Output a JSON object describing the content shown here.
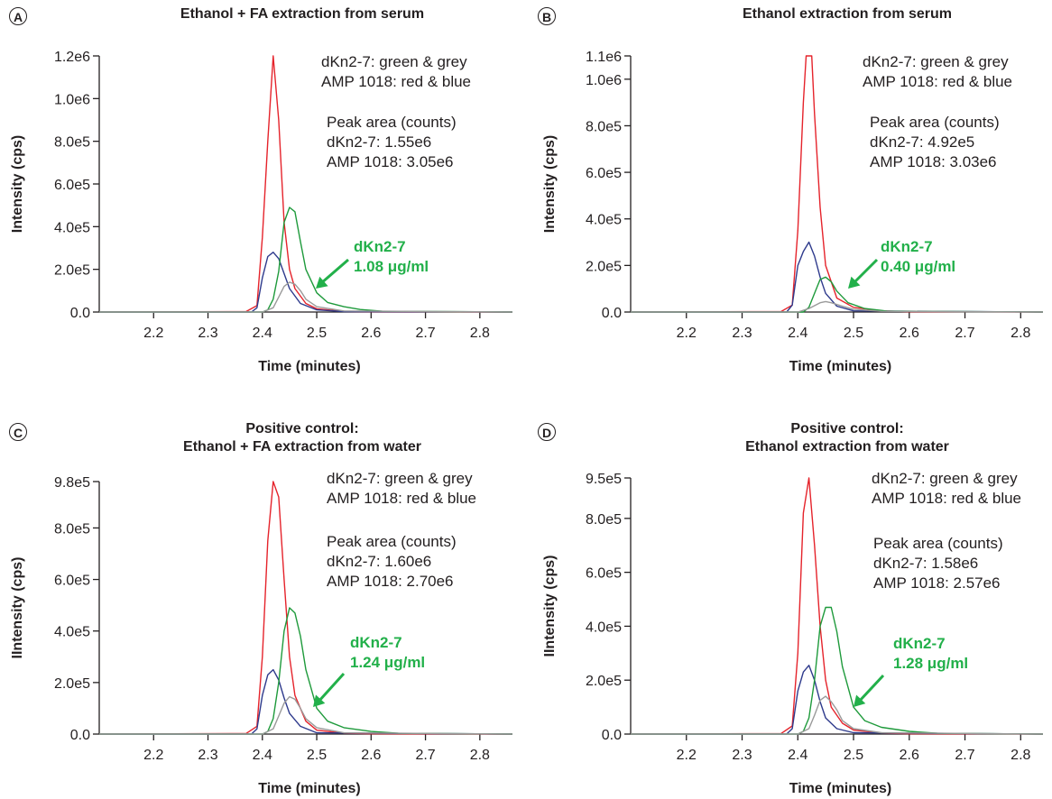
{
  "chart_data": [
    {
      "panel": "A",
      "type": "line",
      "title": "Ethanol + FA extraction from serum",
      "xlabel": "Time (minutes)",
      "ylabel": "Intensity (cps)",
      "xlim": [
        2.1,
        2.86
      ],
      "ylim": [
        0,
        1200000
      ],
      "yticks": [
        "0.0",
        "2.0e5",
        "4.0e5",
        "6.0e5",
        "8.0e5",
        "1.0e6",
        "1.2e6"
      ],
      "ytick_values": [
        0,
        200000,
        400000,
        600000,
        800000,
        1000000,
        1200000
      ],
      "xticks": [
        "2.2",
        "2.3",
        "2.4",
        "2.5",
        "2.6",
        "2.7",
        "2.8"
      ],
      "xtick_values": [
        2.2,
        2.3,
        2.4,
        2.5,
        2.6,
        2.7,
        2.8
      ],
      "legend_lines": [
        "dKn2-7: green & grey",
        "AMP 1018: red & blue"
      ],
      "peak_area_lines": [
        "Peak area (counts)",
        "dKn2-7: 1.55e6",
        "AMP 1018: 3.05e6"
      ],
      "annotation": [
        "dKn2-7",
        "1.08 μg/ml"
      ],
      "series": [
        {
          "color": "#e5232b",
          "x": [
            2.1,
            2.37,
            2.39,
            2.4,
            2.41,
            2.42,
            2.43,
            2.44,
            2.45,
            2.46,
            2.48,
            2.5,
            2.55,
            2.6,
            2.86
          ],
          "y": [
            0,
            2000,
            30000,
            350000,
            800000,
            1200000,
            900000,
            420000,
            200000,
            110000,
            40000,
            15000,
            3000,
            1000,
            0
          ]
        },
        {
          "color": "#2e3a8c",
          "x": [
            2.1,
            2.38,
            2.39,
            2.4,
            2.41,
            2.42,
            2.43,
            2.44,
            2.45,
            2.47,
            2.5,
            2.55,
            2.86
          ],
          "y": [
            0,
            0,
            20000,
            160000,
            260000,
            280000,
            250000,
            180000,
            110000,
            40000,
            10000,
            2000,
            0
          ]
        },
        {
          "color": "#1e9a3b",
          "x": [
            2.1,
            2.4,
            2.41,
            2.42,
            2.43,
            2.44,
            2.45,
            2.46,
            2.47,
            2.48,
            2.5,
            2.52,
            2.55,
            2.58,
            2.62,
            2.86
          ],
          "y": [
            0,
            0,
            10000,
            60000,
            190000,
            420000,
            490000,
            470000,
            330000,
            200000,
            90000,
            45000,
            25000,
            12000,
            4000,
            0
          ]
        },
        {
          "color": "#9a9a9a",
          "x": [
            2.1,
            2.4,
            2.42,
            2.43,
            2.44,
            2.45,
            2.46,
            2.47,
            2.48,
            2.5,
            2.55,
            2.86
          ],
          "y": [
            0,
            0,
            20000,
            70000,
            120000,
            140000,
            130000,
            100000,
            60000,
            25000,
            5000,
            0
          ]
        }
      ]
    },
    {
      "panel": "B",
      "type": "line",
      "title": "Ethanol extraction from serum",
      "xlabel": "Time (minutes)",
      "ylabel": "Intensity (cps)",
      "xlim": [
        2.1,
        2.84
      ],
      "ylim": [
        0,
        1100000
      ],
      "yticks": [
        "0.0",
        "2.0e5",
        "4.0e5",
        "6.0e5",
        "8.0e5",
        "1.0e6",
        "1.1e6"
      ],
      "ytick_values": [
        0,
        200000,
        400000,
        600000,
        800000,
        1000000,
        1100000
      ],
      "xticks": [
        "2.2",
        "2.3",
        "2.4",
        "2.5",
        "2.6",
        "2.7",
        "2.8"
      ],
      "xtick_values": [
        2.2,
        2.3,
        2.4,
        2.5,
        2.6,
        2.7,
        2.8
      ],
      "legend_lines": [
        "dKn2-7: green & grey",
        "AMP 1018: red & blue"
      ],
      "peak_area_lines": [
        "Peak area (counts)",
        "dKn2-7: 4.92e5",
        "AMP 1018: 3.03e6"
      ],
      "annotation": [
        "dKn2-7",
        "0.40 μg/ml"
      ],
      "series": [
        {
          "color": "#e5232b",
          "x": [
            2.1,
            2.37,
            2.39,
            2.4,
            2.41,
            2.415,
            2.425,
            2.43,
            2.44,
            2.45,
            2.47,
            2.5,
            2.55,
            2.6,
            2.84
          ],
          "y": [
            0,
            2000,
            30000,
            350000,
            900000,
            1100000,
            1100000,
            850000,
            450000,
            200000,
            60000,
            20000,
            5000,
            1000,
            0
          ]
        },
        {
          "color": "#2e3a8c",
          "x": [
            2.1,
            2.38,
            2.39,
            2.4,
            2.41,
            2.42,
            2.43,
            2.44,
            2.45,
            2.47,
            2.5,
            2.84
          ],
          "y": [
            0,
            0,
            30000,
            200000,
            260000,
            300000,
            240000,
            150000,
            80000,
            25000,
            5000,
            0
          ]
        },
        {
          "color": "#1e9a3b",
          "x": [
            2.1,
            2.41,
            2.42,
            2.43,
            2.44,
            2.45,
            2.46,
            2.47,
            2.49,
            2.52,
            2.56,
            2.84
          ],
          "y": [
            0,
            0,
            20000,
            80000,
            140000,
            150000,
            130000,
            90000,
            40000,
            15000,
            4000,
            0
          ]
        },
        {
          "color": "#9a9a9a",
          "x": [
            2.1,
            2.4,
            2.42,
            2.44,
            2.45,
            2.46,
            2.48,
            2.5,
            2.55,
            2.84
          ],
          "y": [
            0,
            0,
            15000,
            40000,
            45000,
            40000,
            25000,
            12000,
            3000,
            0
          ]
        }
      ]
    },
    {
      "panel": "C",
      "type": "line",
      "title": [
        "Positive control:",
        "Ethanol + FA extraction from water"
      ],
      "xlabel": "Time (minutes)",
      "ylabel": "IIntensity (cps)",
      "xlim": [
        2.1,
        2.86
      ],
      "ylim": [
        0,
        980000
      ],
      "yticks": [
        "0.0",
        "2.0e5",
        "4.0e5",
        "6.0e5",
        "8.0e5",
        "9.8e5"
      ],
      "ytick_values": [
        0,
        200000,
        400000,
        600000,
        800000,
        980000
      ],
      "xticks": [
        "2.2",
        "2.3",
        "2.4",
        "2.5",
        "2.6",
        "2.7",
        "2.8"
      ],
      "xtick_values": [
        2.2,
        2.3,
        2.4,
        2.5,
        2.6,
        2.7,
        2.8
      ],
      "legend_lines": [
        "dKn2-7: green & grey",
        "AMP 1018: red & blue"
      ],
      "peak_area_lines": [
        "Peak area (counts)",
        "dKn2-7: 1.60e6",
        "AMP 1018: 2.70e6"
      ],
      "annotation": [
        "dKn2-7",
        "1.24 μg/ml"
      ],
      "series": [
        {
          "color": "#e5232b",
          "x": [
            2.1,
            2.37,
            2.39,
            2.4,
            2.41,
            2.42,
            2.43,
            2.44,
            2.45,
            2.46,
            2.48,
            2.5,
            2.55,
            2.6,
            2.86
          ],
          "y": [
            0,
            2000,
            30000,
            300000,
            750000,
            980000,
            920000,
            600000,
            300000,
            150000,
            50000,
            15000,
            4000,
            1000,
            0
          ]
        },
        {
          "color": "#2e3a8c",
          "x": [
            2.1,
            2.38,
            2.39,
            2.4,
            2.41,
            2.42,
            2.43,
            2.44,
            2.45,
            2.47,
            2.5,
            2.86
          ],
          "y": [
            0,
            0,
            20000,
            150000,
            230000,
            250000,
            210000,
            140000,
            80000,
            30000,
            5000,
            0
          ]
        },
        {
          "color": "#1e9a3b",
          "x": [
            2.1,
            2.4,
            2.41,
            2.42,
            2.43,
            2.44,
            2.45,
            2.46,
            2.47,
            2.48,
            2.5,
            2.52,
            2.55,
            2.6,
            2.65,
            2.86
          ],
          "y": [
            0,
            0,
            10000,
            60000,
            200000,
            400000,
            490000,
            470000,
            380000,
            250000,
            100000,
            50000,
            25000,
            10000,
            3000,
            0
          ]
        },
        {
          "color": "#9a9a9a",
          "x": [
            2.1,
            2.4,
            2.42,
            2.43,
            2.44,
            2.45,
            2.46,
            2.47,
            2.48,
            2.5,
            2.55,
            2.86
          ],
          "y": [
            0,
            0,
            20000,
            70000,
            120000,
            145000,
            135000,
            100000,
            60000,
            25000,
            5000,
            0
          ]
        }
      ]
    },
    {
      "panel": "D",
      "type": "line",
      "title": [
        "Positive control:",
        "Ethanol extraction from water"
      ],
      "xlabel": "Time (minutes)",
      "ylabel": "IIntensity (cps)",
      "xlim": [
        2.1,
        2.84
      ],
      "ylim": [
        0,
        950000
      ],
      "yticks": [
        "0.0",
        "2.0e5",
        "4.0e5",
        "6.0e5",
        "8.0e5",
        "9.5e5"
      ],
      "ytick_values": [
        0,
        200000,
        400000,
        600000,
        800000,
        950000
      ],
      "xticks": [
        "2.2",
        "2.3",
        "2.4",
        "2.5",
        "2.6",
        "2.7",
        "2.8"
      ],
      "xtick_values": [
        2.2,
        2.3,
        2.4,
        2.5,
        2.6,
        2.7,
        2.8
      ],
      "legend_lines": [
        "dKn2-7: green & grey",
        "AMP 1018: red & blue"
      ],
      "peak_area_lines": [
        "Peak area (counts)",
        "dKn2-7: 1.58e6",
        "AMP 1018: 2.57e6"
      ],
      "annotation": [
        "dKn2-7",
        "1.28 μg/ml"
      ],
      "series": [
        {
          "color": "#e5232b",
          "x": [
            2.1,
            2.37,
            2.39,
            2.4,
            2.41,
            2.42,
            2.43,
            2.44,
            2.45,
            2.46,
            2.48,
            2.5,
            2.55,
            2.6,
            2.84
          ],
          "y": [
            0,
            2000,
            30000,
            300000,
            820000,
            950000,
            700000,
            400000,
            200000,
            100000,
            40000,
            15000,
            4000,
            1000,
            0
          ]
        },
        {
          "color": "#2e3a8c",
          "x": [
            2.1,
            2.38,
            2.39,
            2.4,
            2.41,
            2.42,
            2.43,
            2.44,
            2.45,
            2.47,
            2.5,
            2.84
          ],
          "y": [
            0,
            0,
            20000,
            160000,
            230000,
            255000,
            200000,
            120000,
            60000,
            20000,
            5000,
            0
          ]
        },
        {
          "color": "#1e9a3b",
          "x": [
            2.1,
            2.4,
            2.41,
            2.42,
            2.43,
            2.44,
            2.45,
            2.46,
            2.47,
            2.48,
            2.5,
            2.52,
            2.55,
            2.6,
            2.65,
            2.84
          ],
          "y": [
            0,
            0,
            10000,
            60000,
            200000,
            400000,
            470000,
            470000,
            380000,
            250000,
            100000,
            50000,
            25000,
            10000,
            3000,
            0
          ]
        },
        {
          "color": "#9a9a9a",
          "x": [
            2.1,
            2.4,
            2.42,
            2.43,
            2.44,
            2.45,
            2.46,
            2.47,
            2.48,
            2.5,
            2.55,
            2.84
          ],
          "y": [
            0,
            0,
            20000,
            70000,
            125000,
            140000,
            120000,
            90000,
            50000,
            20000,
            5000,
            0
          ]
        }
      ]
    }
  ]
}
